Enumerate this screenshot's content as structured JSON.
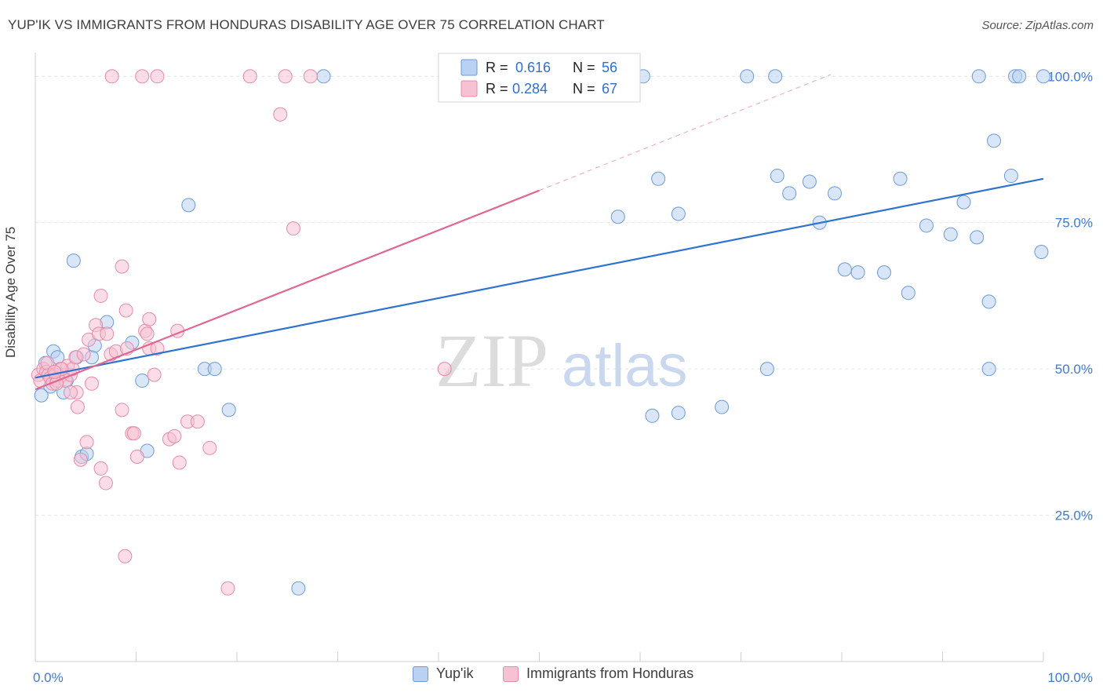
{
  "title": "YUP'IK VS IMMIGRANTS FROM HONDURAS DISABILITY AGE OVER 75 CORRELATION CHART",
  "source": "Source: ZipAtlas.com",
  "watermark": {
    "part1": "ZIP",
    "part2": "atlas"
  },
  "chart_data": {
    "type": "scatter",
    "ylabel": "Disability Age Over 75",
    "xlim": [
      0,
      100
    ],
    "ylim": [
      0,
      105
    ],
    "x_tick_labels": [
      "0.0%",
      "100.0%"
    ],
    "y_ticks": [
      25,
      50,
      75,
      100
    ],
    "y_tick_labels": [
      "25.0%",
      "50.0%",
      "75.0%",
      "100.0%"
    ],
    "grid": true,
    "legend_position": "top-center",
    "stats": [
      {
        "r_label": "R =",
        "r": "0.616",
        "n_label": "N =",
        "n": "56"
      },
      {
        "r_label": "R =",
        "r": "0.284",
        "n_label": "N =",
        "n": "67"
      }
    ],
    "series": [
      {
        "name": "Yup'ik",
        "color": "#6c9bd8",
        "fill": "#b9d1f2",
        "trend_color": "#2f73d0",
        "trend": {
          "x0": 0,
          "y0": 48.5,
          "x1": 100,
          "y1": 82.5
        },
        "points": [
          [
            1,
            51
          ],
          [
            1.5,
            47
          ],
          [
            1.8,
            53
          ],
          [
            2.2,
            52
          ],
          [
            2.8,
            46
          ],
          [
            3.1,
            48
          ],
          [
            3.8,
            68.5
          ],
          [
            4.1,
            52
          ],
          [
            4.6,
            35
          ],
          [
            5.1,
            35.5
          ],
          [
            5.6,
            52
          ],
          [
            5.9,
            54
          ],
          [
            7.1,
            58
          ],
          [
            9.6,
            54.5
          ],
          [
            10.6,
            48
          ],
          [
            11.1,
            36
          ],
          [
            15.2,
            78
          ],
          [
            16.8,
            50
          ],
          [
            17.8,
            50
          ],
          [
            19.2,
            43
          ],
          [
            26.1,
            12.5
          ],
          [
            28.6,
            100
          ],
          [
            57.8,
            76
          ],
          [
            60.3,
            100
          ],
          [
            61.8,
            82.5
          ],
          [
            61.2,
            42
          ],
          [
            63.8,
            76.5
          ],
          [
            63.8,
            42.5
          ],
          [
            68.1,
            43.5
          ],
          [
            70.6,
            100
          ],
          [
            72.6,
            50
          ],
          [
            73.4,
            100
          ],
          [
            73.6,
            83
          ],
          [
            74.8,
            80
          ],
          [
            76.8,
            82
          ],
          [
            77.8,
            75
          ],
          [
            79.3,
            80
          ],
          [
            80.3,
            67
          ],
          [
            81.6,
            66.5
          ],
          [
            84.2,
            66.5
          ],
          [
            86.6,
            63
          ],
          [
            85.8,
            82.5
          ],
          [
            88.4,
            74.5
          ],
          [
            90.8,
            73
          ],
          [
            92.1,
            78.5
          ],
          [
            93.6,
            100
          ],
          [
            93.4,
            72.5
          ],
          [
            94.6,
            61.5
          ],
          [
            94.6,
            50
          ],
          [
            95.1,
            89
          ],
          [
            96.8,
            83
          ],
          [
            97.2,
            100
          ],
          [
            97.6,
            100
          ],
          [
            99.8,
            70
          ],
          [
            100,
            100
          ],
          [
            0.6,
            45.5
          ]
        ]
      },
      {
        "name": "Immigrants from Honduras",
        "color": "#e88ba8",
        "fill": "#f6c1d2",
        "trend_color": "#e0678f",
        "trend": {
          "x0": 0,
          "y0": 46.5,
          "x1": 50,
          "y1": 80.5
        },
        "trend_ext": {
          "x0": 50,
          "y0": 80.5,
          "x1": 78.9,
          "y1": 100.3
        },
        "points": [
          [
            0.3,
            49
          ],
          [
            0.5,
            48
          ],
          [
            0.8,
            50
          ],
          [
            1.1,
            49.5
          ],
          [
            1.3,
            49
          ],
          [
            1.5,
            48.5
          ],
          [
            1.7,
            47.5
          ],
          [
            2,
            49
          ],
          [
            2.2,
            48
          ],
          [
            2.5,
            50
          ],
          [
            2.7,
            49
          ],
          [
            3,
            48
          ],
          [
            3.2,
            50.5
          ],
          [
            3.5,
            49
          ],
          [
            3.7,
            50
          ],
          [
            4,
            52
          ],
          [
            4.1,
            46
          ],
          [
            4.2,
            43.5
          ],
          [
            4.5,
            34.5
          ],
          [
            4.8,
            52.5
          ],
          [
            5.1,
            37.5
          ],
          [
            5.3,
            55
          ],
          [
            5.6,
            47.5
          ],
          [
            6,
            57.5
          ],
          [
            6.3,
            56
          ],
          [
            6.5,
            33
          ],
          [
            6.5,
            62.5
          ],
          [
            7,
            30.5
          ],
          [
            7.1,
            56
          ],
          [
            7.5,
            52.5
          ],
          [
            7.6,
            100
          ],
          [
            8,
            53
          ],
          [
            8.6,
            43
          ],
          [
            8.6,
            67.5
          ],
          [
            8.9,
            18
          ],
          [
            9,
            60
          ],
          [
            9.1,
            53.5
          ],
          [
            9.6,
            39
          ],
          [
            9.8,
            39
          ],
          [
            10.1,
            35
          ],
          [
            10.9,
            56.5
          ],
          [
            11.1,
            56
          ],
          [
            11.3,
            53.5
          ],
          [
            11.3,
            58.5
          ],
          [
            11.8,
            49
          ],
          [
            12.1,
            53.5
          ],
          [
            13.3,
            38
          ],
          [
            13.8,
            38.5
          ],
          [
            14.1,
            56.5
          ],
          [
            14.3,
            34
          ],
          [
            15.1,
            41
          ],
          [
            16.1,
            41
          ],
          [
            17.3,
            36.5
          ],
          [
            19.1,
            12.5
          ],
          [
            21.3,
            100
          ],
          [
            24.3,
            93.5
          ],
          [
            24.8,
            100
          ],
          [
            25.6,
            74
          ],
          [
            27.3,
            100
          ],
          [
            40.6,
            50
          ],
          [
            10.6,
            100
          ],
          [
            12.1,
            100
          ],
          [
            3.5,
            46
          ],
          [
            2.6,
            50
          ],
          [
            1.2,
            51
          ],
          [
            2.1,
            47.5
          ],
          [
            1.9,
            49.5
          ]
        ]
      }
    ]
  }
}
